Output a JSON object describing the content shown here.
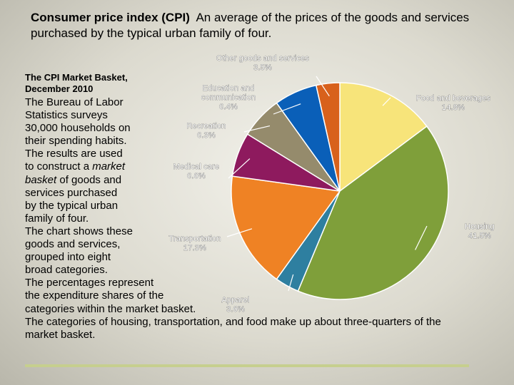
{
  "header": {
    "term": "Consumer price index (CPI)",
    "definition": "An average of the prices of the goods and services purchased by the typical urban family of four."
  },
  "body": {
    "subtitle_line1": "The CPI Market Basket,",
    "subtitle_line2": "December 2010",
    "lines": [
      "The Bureau of Labor",
      "Statistics surveys",
      "30,000 households on",
      "their spending habits.",
      "The results are used",
      "to construct a ",
      "market",
      "basket",
      " of goods and",
      "services purchased",
      "by the typical urban",
      "family of four.",
      "The chart shows these",
      "goods and services,",
      "grouped into eight",
      "broad categories.",
      "The percentages represent",
      "the expenditure shares of the",
      "categories within the market basket.",
      "The categories of housing, transportation, and food make up about three-quarters of the",
      "market basket."
    ]
  },
  "colors": {
    "food": "#f7e47a",
    "housing": "#7f9f3a",
    "apparel": "#2e7fa0",
    "transportation": "#ef8224",
    "medical": "#8e1a5e",
    "recreation": "#958b6c",
    "education": "#0a5fb8",
    "other": "#d8611c"
  },
  "chart_data": {
    "type": "pie",
    "slices": [
      {
        "key": "food",
        "name": "Food and beverages",
        "value": 14.8,
        "label": "14.8%"
      },
      {
        "key": "housing",
        "name": "Housing",
        "value": 41.5,
        "label": "41.5%"
      },
      {
        "key": "apparel",
        "name": "Apparel",
        "value": 3.6,
        "label": "3.6%"
      },
      {
        "key": "transportation",
        "name": "Transportation",
        "value": 17.3,
        "label": "17.3%"
      },
      {
        "key": "medical",
        "name": "Medical care",
        "value": 6.6,
        "label": "6.6%"
      },
      {
        "key": "recreation",
        "name": "Recreation",
        "value": 6.3,
        "label": "6.3%"
      },
      {
        "key": "education",
        "name": "Education and communication",
        "value": 6.4,
        "label": "6.4%"
      },
      {
        "key": "other",
        "name": "Other goods and services",
        "value": 3.5,
        "label": "3.5%"
      }
    ]
  }
}
